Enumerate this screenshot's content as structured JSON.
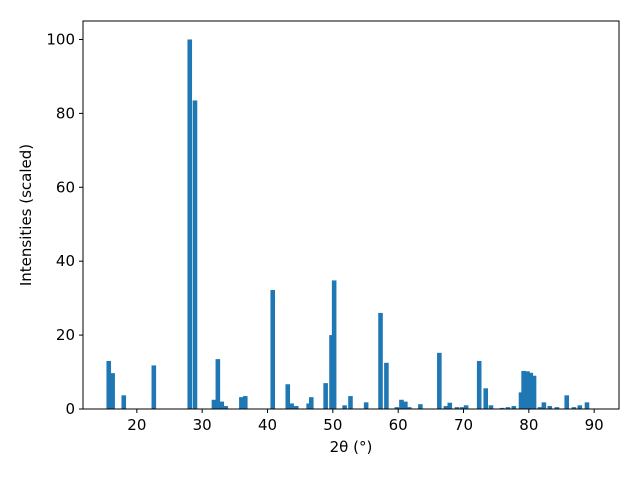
{
  "chart_data": {
    "type": "bar",
    "x_label": "2θ (°)",
    "y_label": "Intensities (scaled)",
    "x": [
      15.7,
      16.3,
      18.0,
      22.6,
      28.1,
      28.9,
      31.8,
      32.4,
      33.0,
      33.6,
      36.0,
      36.6,
      40.8,
      43.1,
      43.7,
      44.4,
      46.3,
      46.7,
      48.9,
      49.8,
      50.2,
      51.8,
      52.7,
      55.1,
      57.3,
      58.2,
      59.8,
      60.5,
      61.1,
      61.7,
      63.4,
      66.3,
      67.3,
      67.9,
      69.0,
      69.8,
      70.4,
      72.4,
      73.4,
      74.2,
      75.9,
      76.8,
      77.7,
      78.8,
      79.2,
      79.8,
      80.3,
      80.8,
      81.7,
      82.3,
      83.2,
      84.3,
      85.8,
      86.9,
      87.8,
      88.9
    ],
    "values": [
      13,
      9.7,
      3.7,
      11.8,
      100,
      83.5,
      2.5,
      13.5,
      2.0,
      0.8,
      3.2,
      3.5,
      32.2,
      6.7,
      1.5,
      0.8,
      1.5,
      3.2,
      7.0,
      20,
      34.8,
      1.0,
      3.5,
      1.8,
      26,
      12.5,
      0.5,
      2.5,
      2.0,
      0.5,
      1.3,
      15.2,
      0.8,
      1.7,
      0.5,
      0.5,
      1.0,
      13,
      5.6,
      1.0,
      0.3,
      0.5,
      0.8,
      4.5,
      10.3,
      10.2,
      9.8,
      9.0,
      0.5,
      1.8,
      0.8,
      0.5,
      3.7,
      0.5,
      1.0,
      1.8
    ],
    "color": "#1f77b4",
    "xlim": [
      11.76,
      93.8
    ],
    "xticks": [
      20,
      30,
      40,
      50,
      60,
      70,
      80,
      90
    ],
    "ylim": [
      0,
      105
    ],
    "yticks": [
      0,
      20,
      40,
      60,
      80,
      100
    ]
  }
}
